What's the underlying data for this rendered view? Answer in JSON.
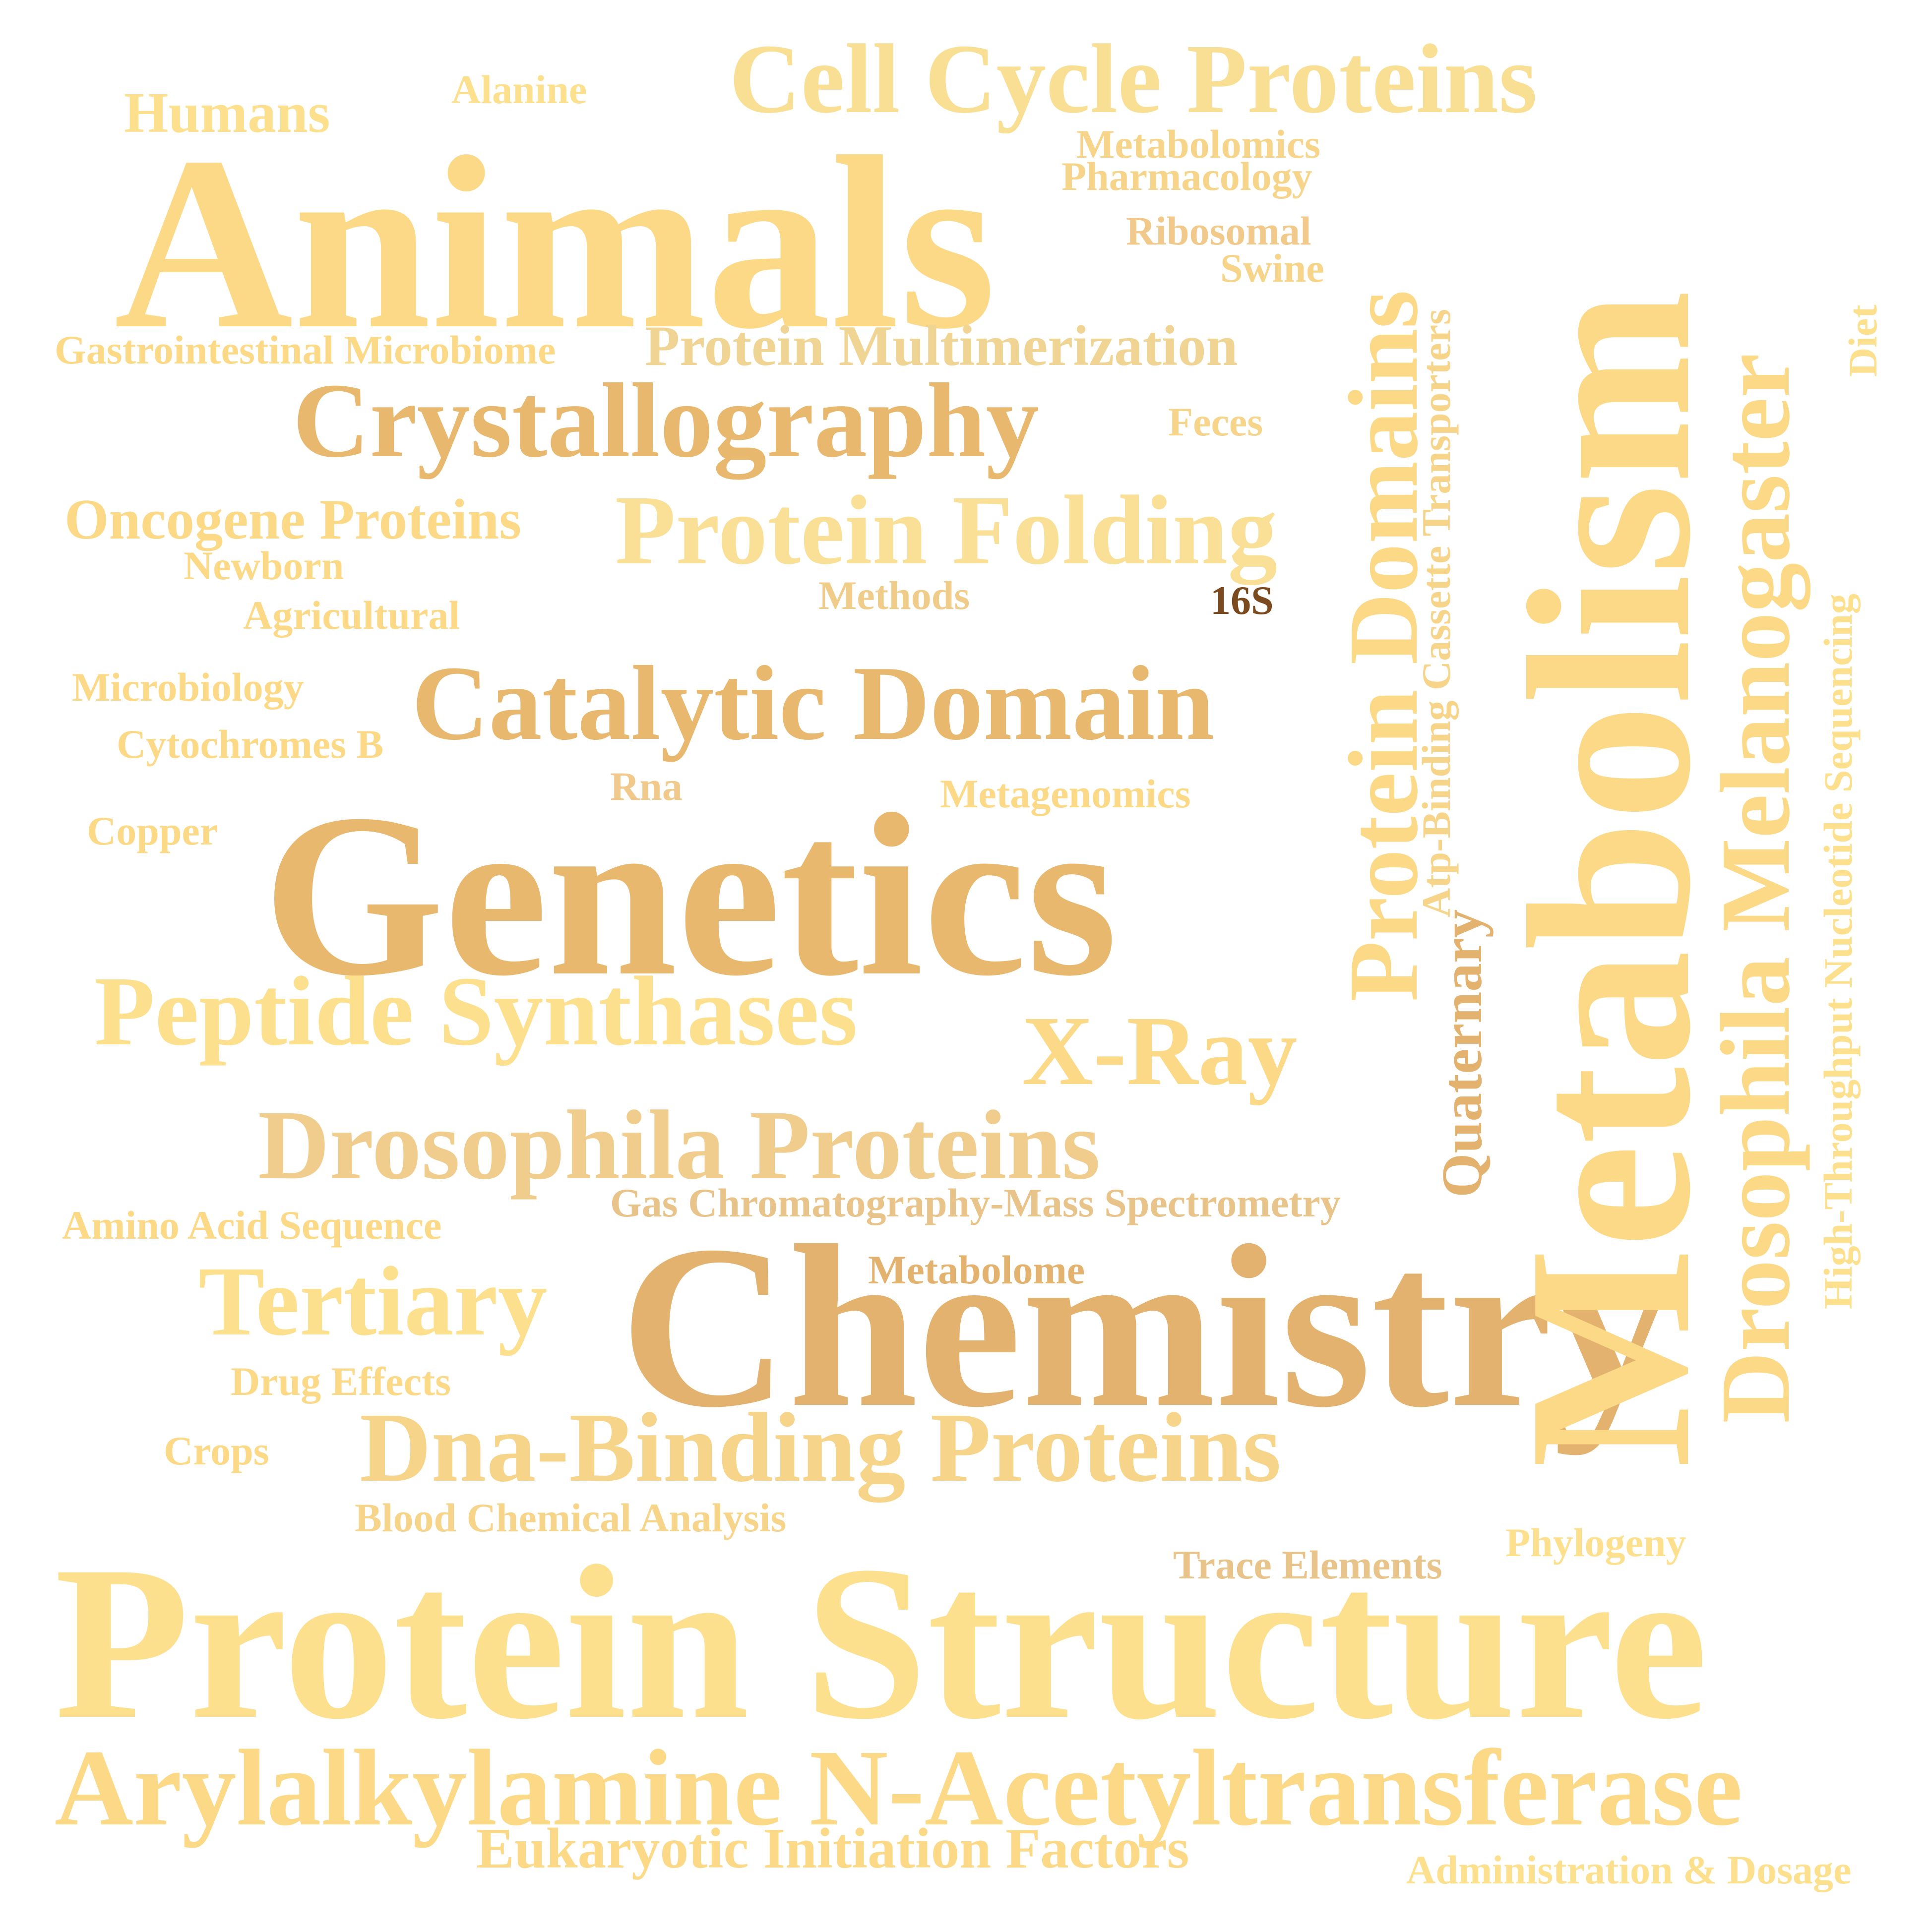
{
  "words": [
    {
      "text": "Humans",
      "color": "#fde08e"
    },
    {
      "text": "Alanine",
      "color": "#fde08e"
    },
    {
      "text": "Cell Cycle Proteins",
      "color": "#f9df93"
    },
    {
      "text": "Metabolomics",
      "color": "#f6d48a"
    },
    {
      "text": "Pharmacology",
      "color": "#f6d48a"
    },
    {
      "text": "Animals",
      "color": "#fbd987"
    },
    {
      "text": "Ribosomal",
      "color": "#f1c98a"
    },
    {
      "text": "Swine",
      "color": "#f6d48a"
    },
    {
      "text": "Gastrointestinal Microbiome",
      "color": "#fbd987"
    },
    {
      "text": "Protein Multimerization",
      "color": "#f0d494"
    },
    {
      "text": "Crystallography",
      "color": "#e8b86e"
    },
    {
      "text": "Feces",
      "color": "#f6d48a"
    },
    {
      "text": "Oncogene Proteins",
      "color": "#fbd987"
    },
    {
      "text": "Protein Folding",
      "color": "#fae096"
    },
    {
      "text": "Newborn",
      "color": "#fbd987"
    },
    {
      "text": "Methods",
      "color": "#f0cc8a"
    },
    {
      "text": "16S",
      "color": "#7b4a1e"
    },
    {
      "text": "Agricultural",
      "color": "#fbd987"
    },
    {
      "text": "Microbiology",
      "color": "#fbd987"
    },
    {
      "text": "Catalytic Domain",
      "color": "#e8b86e"
    },
    {
      "text": "Cytochromes B",
      "color": "#fbd987"
    },
    {
      "text": "Rna",
      "color": "#f1c98a"
    },
    {
      "text": "Metagenomics",
      "color": "#fbd987"
    },
    {
      "text": "Copper",
      "color": "#fbd987"
    },
    {
      "text": "Genetics",
      "color": "#e8b86e"
    },
    {
      "text": "Peptide Synthases",
      "color": "#fde08e"
    },
    {
      "text": "X-Ray",
      "color": "#fbd987"
    },
    {
      "text": "Drosophila Proteins",
      "color": "#f0cd8d"
    },
    {
      "text": "Gas Chromatography-Mass Spectrometry",
      "color": "#e8c48a"
    },
    {
      "text": "Amino Acid Sequence",
      "color": "#fbd987"
    },
    {
      "text": "Metabolome",
      "color": "#e2b26e"
    },
    {
      "text": "Tertiary",
      "color": "#fde08e"
    },
    {
      "text": "Chemistry",
      "color": "#e2b26e"
    },
    {
      "text": "Drug Effects",
      "color": "#fbd987"
    },
    {
      "text": "Crops",
      "color": "#fbd987"
    },
    {
      "text": "Dna-Binding Proteins",
      "color": "#f6d48a"
    },
    {
      "text": "Blood Chemical Analysis",
      "color": "#f6d48a"
    },
    {
      "text": "Trace Elements",
      "color": "#e8c48a"
    },
    {
      "text": "Phylogeny",
      "color": "#fde08e"
    },
    {
      "text": "Protein Structure",
      "color": "#fde08e"
    },
    {
      "text": "Arylalkylamine N-Acetyltransferase",
      "color": "#fbd987"
    },
    {
      "text": "Eukaryotic Initiation Factors",
      "color": "#fbd987"
    },
    {
      "text": "Administration & Dosage",
      "color": "#fde08e"
    },
    {
      "text": "Metabolism",
      "color": "#fbd987"
    },
    {
      "text": "Drosophila Melanogaster",
      "color": "#fbd987"
    },
    {
      "text": "Protein Domains",
      "color": "#fbd987"
    },
    {
      "text": "Atp-Binding Cassette Transporters",
      "color": "#f6d48a"
    },
    {
      "text": "Quaternary",
      "color": "#e2b26e"
    },
    {
      "text": "High-Throughput Nucleotide Sequencing",
      "color": "#fde08e"
    },
    {
      "text": "Diet",
      "color": "#fde08e"
    }
  ]
}
